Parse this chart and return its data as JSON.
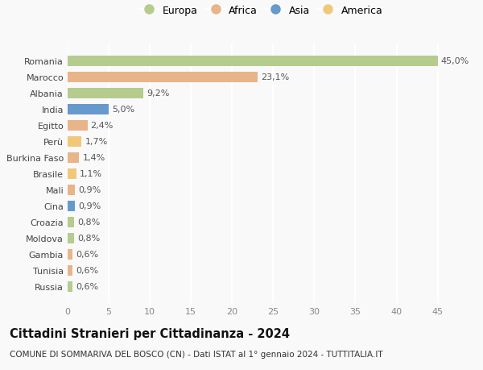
{
  "countries": [
    "Romania",
    "Marocco",
    "Albania",
    "India",
    "Egitto",
    "Perù",
    "Burkina Faso",
    "Brasile",
    "Mali",
    "Cina",
    "Croazia",
    "Moldova",
    "Gambia",
    "Tunisia",
    "Russia"
  ],
  "values": [
    45.0,
    23.1,
    9.2,
    5.0,
    2.4,
    1.7,
    1.4,
    1.1,
    0.9,
    0.9,
    0.8,
    0.8,
    0.6,
    0.6,
    0.6
  ],
  "labels": [
    "45,0%",
    "23,1%",
    "9,2%",
    "5,0%",
    "2,4%",
    "1,7%",
    "1,4%",
    "1,1%",
    "0,9%",
    "0,9%",
    "0,8%",
    "0,8%",
    "0,6%",
    "0,6%",
    "0,6%"
  ],
  "continents": [
    "Europa",
    "Africa",
    "Europa",
    "Asia",
    "Africa",
    "America",
    "Africa",
    "America",
    "Africa",
    "Asia",
    "Europa",
    "Europa",
    "Africa",
    "Africa",
    "Europa"
  ],
  "continent_colors": {
    "Europa": "#b5cc8e",
    "Africa": "#e8b48a",
    "Asia": "#6699cc",
    "America": "#f0c87a"
  },
  "legend_order": [
    "Europa",
    "Africa",
    "Asia",
    "America"
  ],
  "title": "Cittadini Stranieri per Cittadinanza - 2024",
  "subtitle": "COMUNE DI SOMMARIVA DEL BOSCO (CN) - Dati ISTAT al 1° gennaio 2024 - TUTTITALIA.IT",
  "xlim": [
    0,
    47
  ],
  "xticks": [
    0,
    5,
    10,
    15,
    20,
    25,
    30,
    35,
    40,
    45
  ],
  "background_color": "#f9f9f9",
  "grid_color": "#e8e8e8",
  "bar_height": 0.65,
  "label_fontsize": 8,
  "tick_fontsize": 8,
  "title_fontsize": 10.5,
  "subtitle_fontsize": 7.5,
  "legend_fontsize": 9
}
